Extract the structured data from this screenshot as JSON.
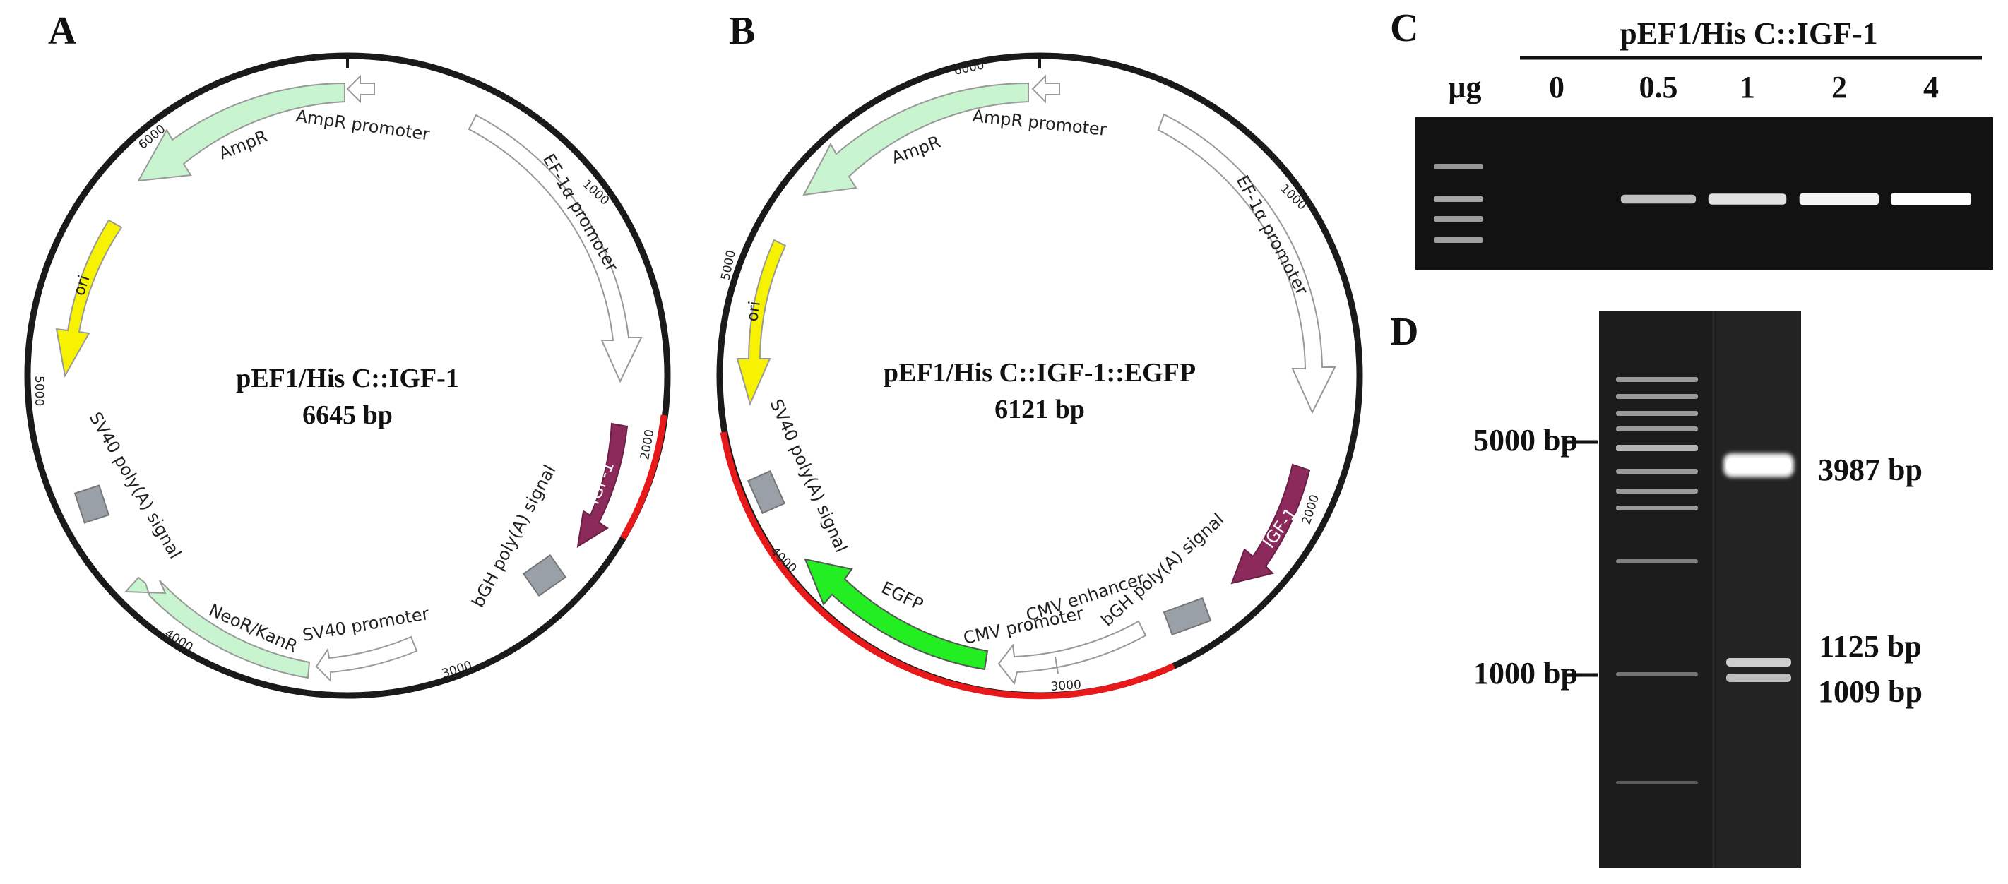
{
  "panel_letters": {
    "a": "A",
    "b": "B",
    "c": "C",
    "d": "D"
  },
  "colors": {
    "backbone": "#1a1a1a",
    "highlight_arc": "#e8191b",
    "ampr": "#c8f5cf",
    "ori": "#f7f200",
    "igf1": "#8c2a5c",
    "polya": "#9aa0a8",
    "neor": "#c8f5cf",
    "egfp": "#22ee22",
    "promoter_fill": "#ffffff",
    "gel_bg": "#121212"
  },
  "plasmid_a": {
    "name": "pEF1/His C::IGF-1",
    "size": "6645 bp",
    "ticks": [
      "1000",
      "2000",
      "3000",
      "4000",
      "5000",
      "6000"
    ],
    "features": {
      "ampr_promoter": "AmpR promoter",
      "ampr": "AmpR",
      "ef1a_promoter": "EF-1α promoter",
      "ori": "ori",
      "igf1": "IGF-1",
      "bgh_polya": "bGH poly(A) signal",
      "sv40_polya": "SV40 poly(A) signal",
      "neor": "NeoR/KanR",
      "sv40_promoter": "SV40 promoter"
    }
  },
  "plasmid_b": {
    "name": "pEF1/His C::IGF-1::EGFP",
    "size": "6121 bp",
    "ticks": [
      "1000",
      "2000",
      "3000",
      "4000",
      "5000",
      "6000"
    ],
    "features": {
      "ampr_promoter": "AmpR promoter",
      "ampr": "AmpR",
      "ef1a_promoter": "EF-1α promoter",
      "ori": "ori",
      "igf1": "IGF-1",
      "bgh_polya": "bGH poly(A) signal",
      "sv40_polya": "SV40 poly(A) signal",
      "cmv_enhancer": "CMV enhancer",
      "cmv_promoter": "CMV promoter",
      "egfp": "EGFP"
    }
  },
  "gel_c": {
    "construct": "pEF1/His C::IGF-1",
    "unit": "μg",
    "doses": [
      "0",
      "0.5",
      "1",
      "2",
      "4"
    ],
    "band_intensity": [
      0,
      0.45,
      0.75,
      0.9,
      1.0
    ]
  },
  "gel_d": {
    "marker_labels": [
      "5000 bp",
      "1000 bp"
    ],
    "band_labels": [
      "3987 bp",
      "1125 bp",
      "1009 bp"
    ]
  }
}
